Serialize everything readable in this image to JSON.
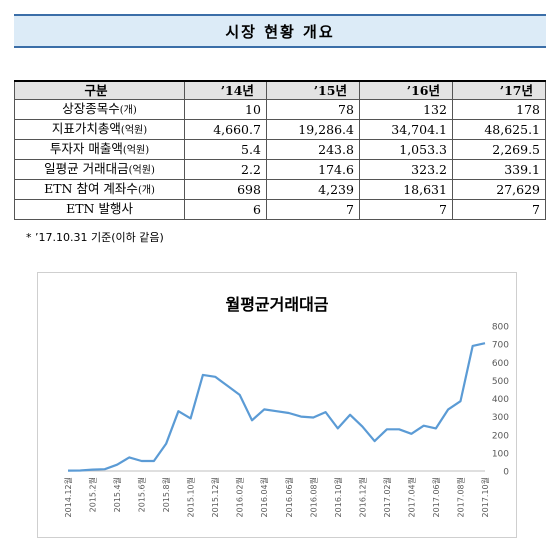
{
  "header": {
    "title": "시장 현황 개요"
  },
  "table": {
    "columns": [
      "구분",
      "’14년",
      "’15년",
      "’16년",
      "’17년"
    ],
    "rows": [
      {
        "label": "상장종목수",
        "unit": "(개)",
        "values": [
          "10",
          "78",
          "132",
          "178"
        ]
      },
      {
        "label": "지표가치총액",
        "unit": "(억원)",
        "values": [
          "4,660.7",
          "19,286.4",
          "34,704.1",
          "48,625.1"
        ]
      },
      {
        "label": "투자자 매출액",
        "unit": "(억원)",
        "values": [
          "5.4",
          "243.8",
          "1,053.3",
          "2,269.5"
        ]
      },
      {
        "label": "일평균 거래대금",
        "unit": "(억원)",
        "values": [
          "2.2",
          "174.6",
          "323.2",
          "339.1"
        ]
      },
      {
        "label": "ETN 참여 계좌수",
        "unit": "(개)",
        "values": [
          "698",
          "4,239",
          "18,631",
          "27,629"
        ]
      },
      {
        "label": "ETN 발행사",
        "unit": "",
        "values": [
          "6",
          "7",
          "7",
          "7"
        ]
      }
    ]
  },
  "footnote": "* ’17.10.31 기준(이하 같음)",
  "chart_data": {
    "type": "line",
    "title": "월평균거래대금",
    "x": [
      "2014.12월",
      "2015.1월",
      "2015.2월",
      "2015.3월",
      "2015.4월",
      "2015.5월",
      "2015.6월",
      "2015.7월",
      "2015.8월",
      "2015.9월",
      "2015.10월",
      "2015.11월",
      "2015.12월",
      "2016.01월",
      "2016.02월",
      "2016.03월",
      "2016.04월",
      "2016.05월",
      "2016.06월",
      "2016.07월",
      "2016.08월",
      "2016.09월",
      "2016.10월",
      "2016.11월",
      "2016.12월",
      "2017.01월",
      "2017.02월",
      "2017.03월",
      "2017.04월",
      "2017.05월",
      "2017.06월",
      "2017.07월",
      "2017.08월",
      "2017.09월",
      "2017.10월"
    ],
    "values": [
      2,
      3,
      8,
      10,
      35,
      75,
      55,
      55,
      150,
      330,
      290,
      530,
      520,
      470,
      420,
      280,
      340,
      330,
      320,
      300,
      295,
      325,
      235,
      310,
      245,
      165,
      230,
      230,
      205,
      250,
      235,
      340,
      385,
      690,
      705
    ],
    "tick_labels": [
      "2014.12월",
      "2015.2월",
      "2015.4월",
      "2015.6월",
      "2015.8월",
      "2015.10월",
      "2015.12월",
      "2016.02월",
      "2016.04월",
      "2016.06월",
      "2016.08월",
      "2016.10월",
      "2016.12월",
      "2017.02월",
      "2017.04월",
      "2017.06월",
      "2017.08월",
      "2017.10월"
    ],
    "ylim": [
      0,
      800
    ],
    "yticks": [
      0,
      100,
      200,
      300,
      400,
      500,
      600,
      700,
      800
    ],
    "line_color": "#5b9bd5",
    "grid": false
  }
}
